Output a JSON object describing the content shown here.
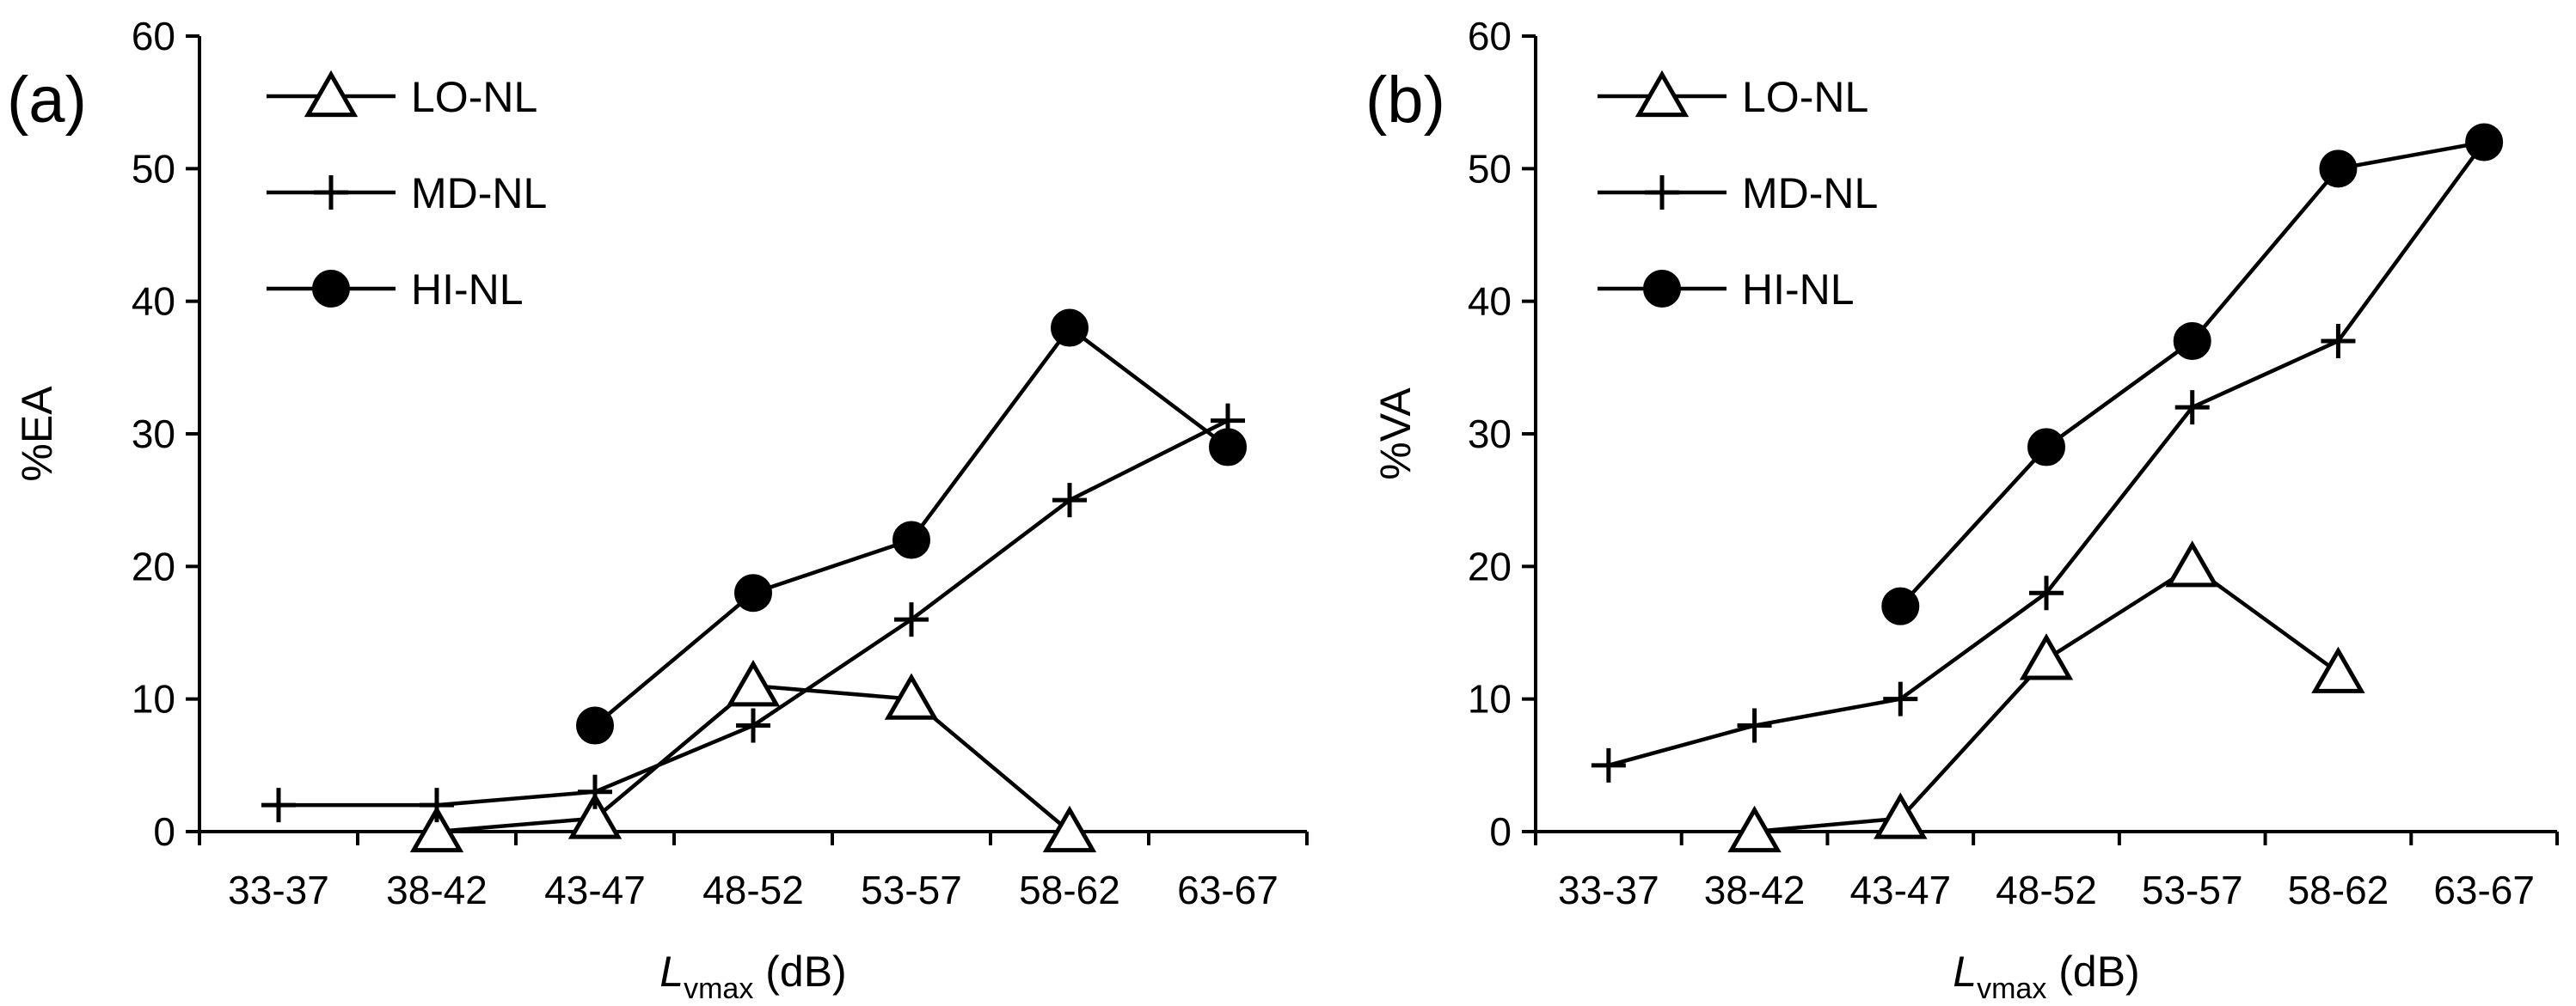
{
  "chart_data": [
    {
      "panel_label": "(a)",
      "type": "line",
      "ylabel": "%EA",
      "xlabel": {
        "main": "L",
        "sub": "vmax",
        "unit": " (dB)"
      },
      "categories": [
        "33-37",
        "38-42",
        "43-47",
        "48-52",
        "53-57",
        "58-62",
        "63-67"
      ],
      "ylim": [
        0,
        60
      ],
      "yticks": [
        0,
        10,
        20,
        30,
        40,
        50,
        60
      ],
      "legend_position": "top-left",
      "series": [
        {
          "name": "LO-NL",
          "marker": "triangle",
          "values": [
            null,
            0,
            1,
            11,
            10,
            0,
            null
          ]
        },
        {
          "name": "MD-NL",
          "marker": "plus",
          "values": [
            2,
            2,
            3,
            8,
            16,
            25,
            31
          ]
        },
        {
          "name": "HI-NL",
          "marker": "circle",
          "values": [
            null,
            null,
            8,
            18,
            22,
            38,
            29
          ]
        }
      ]
    },
    {
      "panel_label": "(b)",
      "type": "line",
      "ylabel": "%VA",
      "xlabel": {
        "main": "L",
        "sub": "vmax",
        "unit": " (dB)"
      },
      "categories": [
        "33-37",
        "38-42",
        "43-47",
        "48-52",
        "53-57",
        "58-62",
        "63-67"
      ],
      "ylim": [
        0,
        60
      ],
      "yticks": [
        0,
        10,
        20,
        30,
        40,
        50,
        60
      ],
      "legend_position": "top-left",
      "series": [
        {
          "name": "LO-NL",
          "marker": "triangle",
          "values": [
            null,
            0,
            1,
            13,
            20,
            12,
            null
          ]
        },
        {
          "name": "MD-NL",
          "marker": "plus",
          "values": [
            5,
            8,
            10,
            18,
            32,
            37,
            52
          ]
        },
        {
          "name": "HI-NL",
          "marker": "circle",
          "values": [
            null,
            null,
            17,
            29,
            37,
            50,
            52
          ]
        }
      ]
    }
  ]
}
